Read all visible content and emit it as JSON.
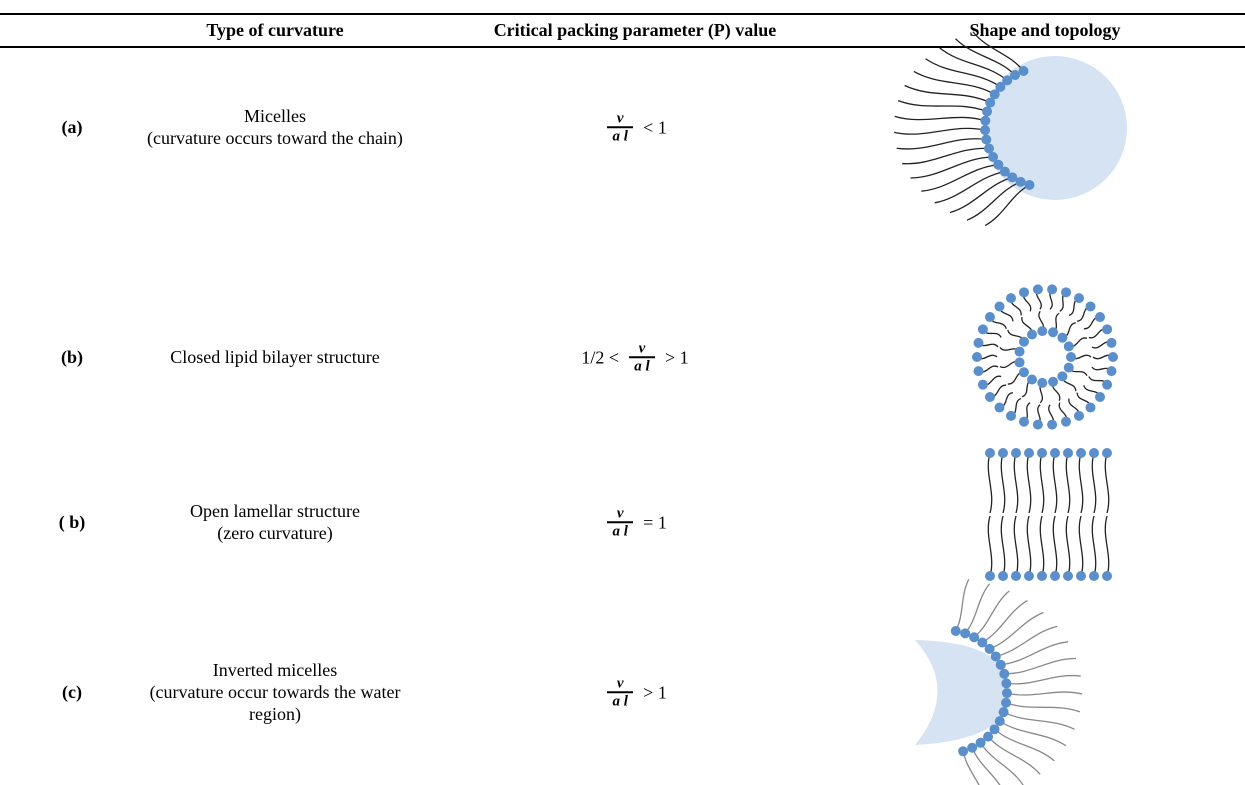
{
  "table": {
    "headers": [
      "Type of curvature",
      "Critical packing parameter (P) value",
      "Shape and topology"
    ],
    "rows": [
      {
        "label": "(a)",
        "type": [
          "Micelles",
          "(curvature occurs toward the chain)"
        ],
        "packing": {
          "numerator": "v",
          "denominator": "a l",
          "suffix": "< 1"
        }
      },
      {
        "label": "(b)",
        "type": [
          "Closed lipid bilayer structure"
        ],
        "packing": {
          "prefix": "1/2 <",
          "numerator": "v",
          "denominator": "a l",
          "suffix": "> 1"
        }
      },
      {
        "label": "( b)",
        "type": [
          "Open lamellar structure",
          "(zero curvature)"
        ],
        "packing": {
          "numerator": "v",
          "denominator": "a l",
          "suffix": "= 1"
        }
      },
      {
        "label": "(c)",
        "type": [
          "Inverted micelles",
          "(curvature occur towards the water region)"
        ],
        "packing": {
          "numerator": "v",
          "denominator": "a l",
          "suffix": "> 1"
        }
      }
    ]
  }
}
